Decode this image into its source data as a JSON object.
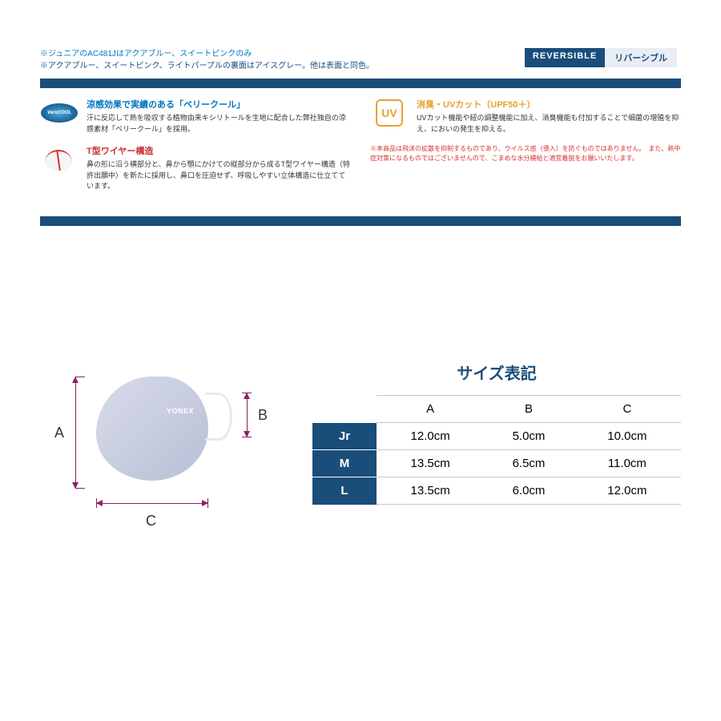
{
  "colors": {
    "primary": "#1a4d7a",
    "accent": "#0075c2",
    "red": "#cc3030",
    "orange": "#e8a030",
    "dim": "#8a2060",
    "text": "#333333",
    "border": "#c8c8c8"
  },
  "notes": {
    "line1": "※ジュニアのAC481Jはアクアブルー、スイートピンクのみ",
    "line1_color": "#0075c2",
    "line2": "※アクアブルー、スイートピンク、ライトパープルの裏面はアイスグレー。他は表面と同色。",
    "line2_color": "#1a4d7a"
  },
  "badge": {
    "en": "REVERSIBLE",
    "ja": "リバーシブル"
  },
  "features": {
    "cool": {
      "icon_label": "VerxCOOL",
      "title": "涼感効果で実績のある「ベリークール」",
      "title_color": "#0075c2",
      "text": "汗に反応して熱を吸収する植物由来キシリトールを生地に配合した弊社独自の涼感素材「ベリークール」を採用。"
    },
    "wire": {
      "title": "T型ワイヤー構造",
      "title_color": "#cc3030",
      "text": "鼻の形に沿う横部分と、鼻から顎にかけての縦部分から成るT型ワイヤー構造（特許出願中）を新たに採用し、鼻口を圧迫せず、呼吸しやすい立体構造に仕立てています。"
    },
    "uv": {
      "icon_label": "UV",
      "title": "消臭・UVカット（UPF50＋）",
      "title_color": "#e8a030",
      "text": "UVカット機能や紐の調整機能に加え、消臭機能も付加することで細菌の増殖を抑え、においの発生を抑える。"
    },
    "warning": "※本商品は飛沫の拡散を抑制するものであり、ウイルス感（侵入）を防ぐものではありません。　また、熱中症対策になるものではございませんので、こまめな水分補給と適宜着脱をお願いいたします。"
  },
  "diagram": {
    "brand": "YONEX",
    "labels": {
      "a": "A",
      "b": "B",
      "c": "C"
    }
  },
  "sizeTable": {
    "title": "サイズ表記",
    "columns": [
      "A",
      "B",
      "C"
    ],
    "rows": [
      {
        "label": "Jr",
        "values": [
          "12.0cm",
          "5.0cm",
          "10.0cm"
        ]
      },
      {
        "label": "M",
        "values": [
          "13.5cm",
          "6.5cm",
          "11.0cm"
        ]
      },
      {
        "label": "L",
        "values": [
          "13.5cm",
          "6.0cm",
          "12.0cm"
        ]
      }
    ]
  }
}
